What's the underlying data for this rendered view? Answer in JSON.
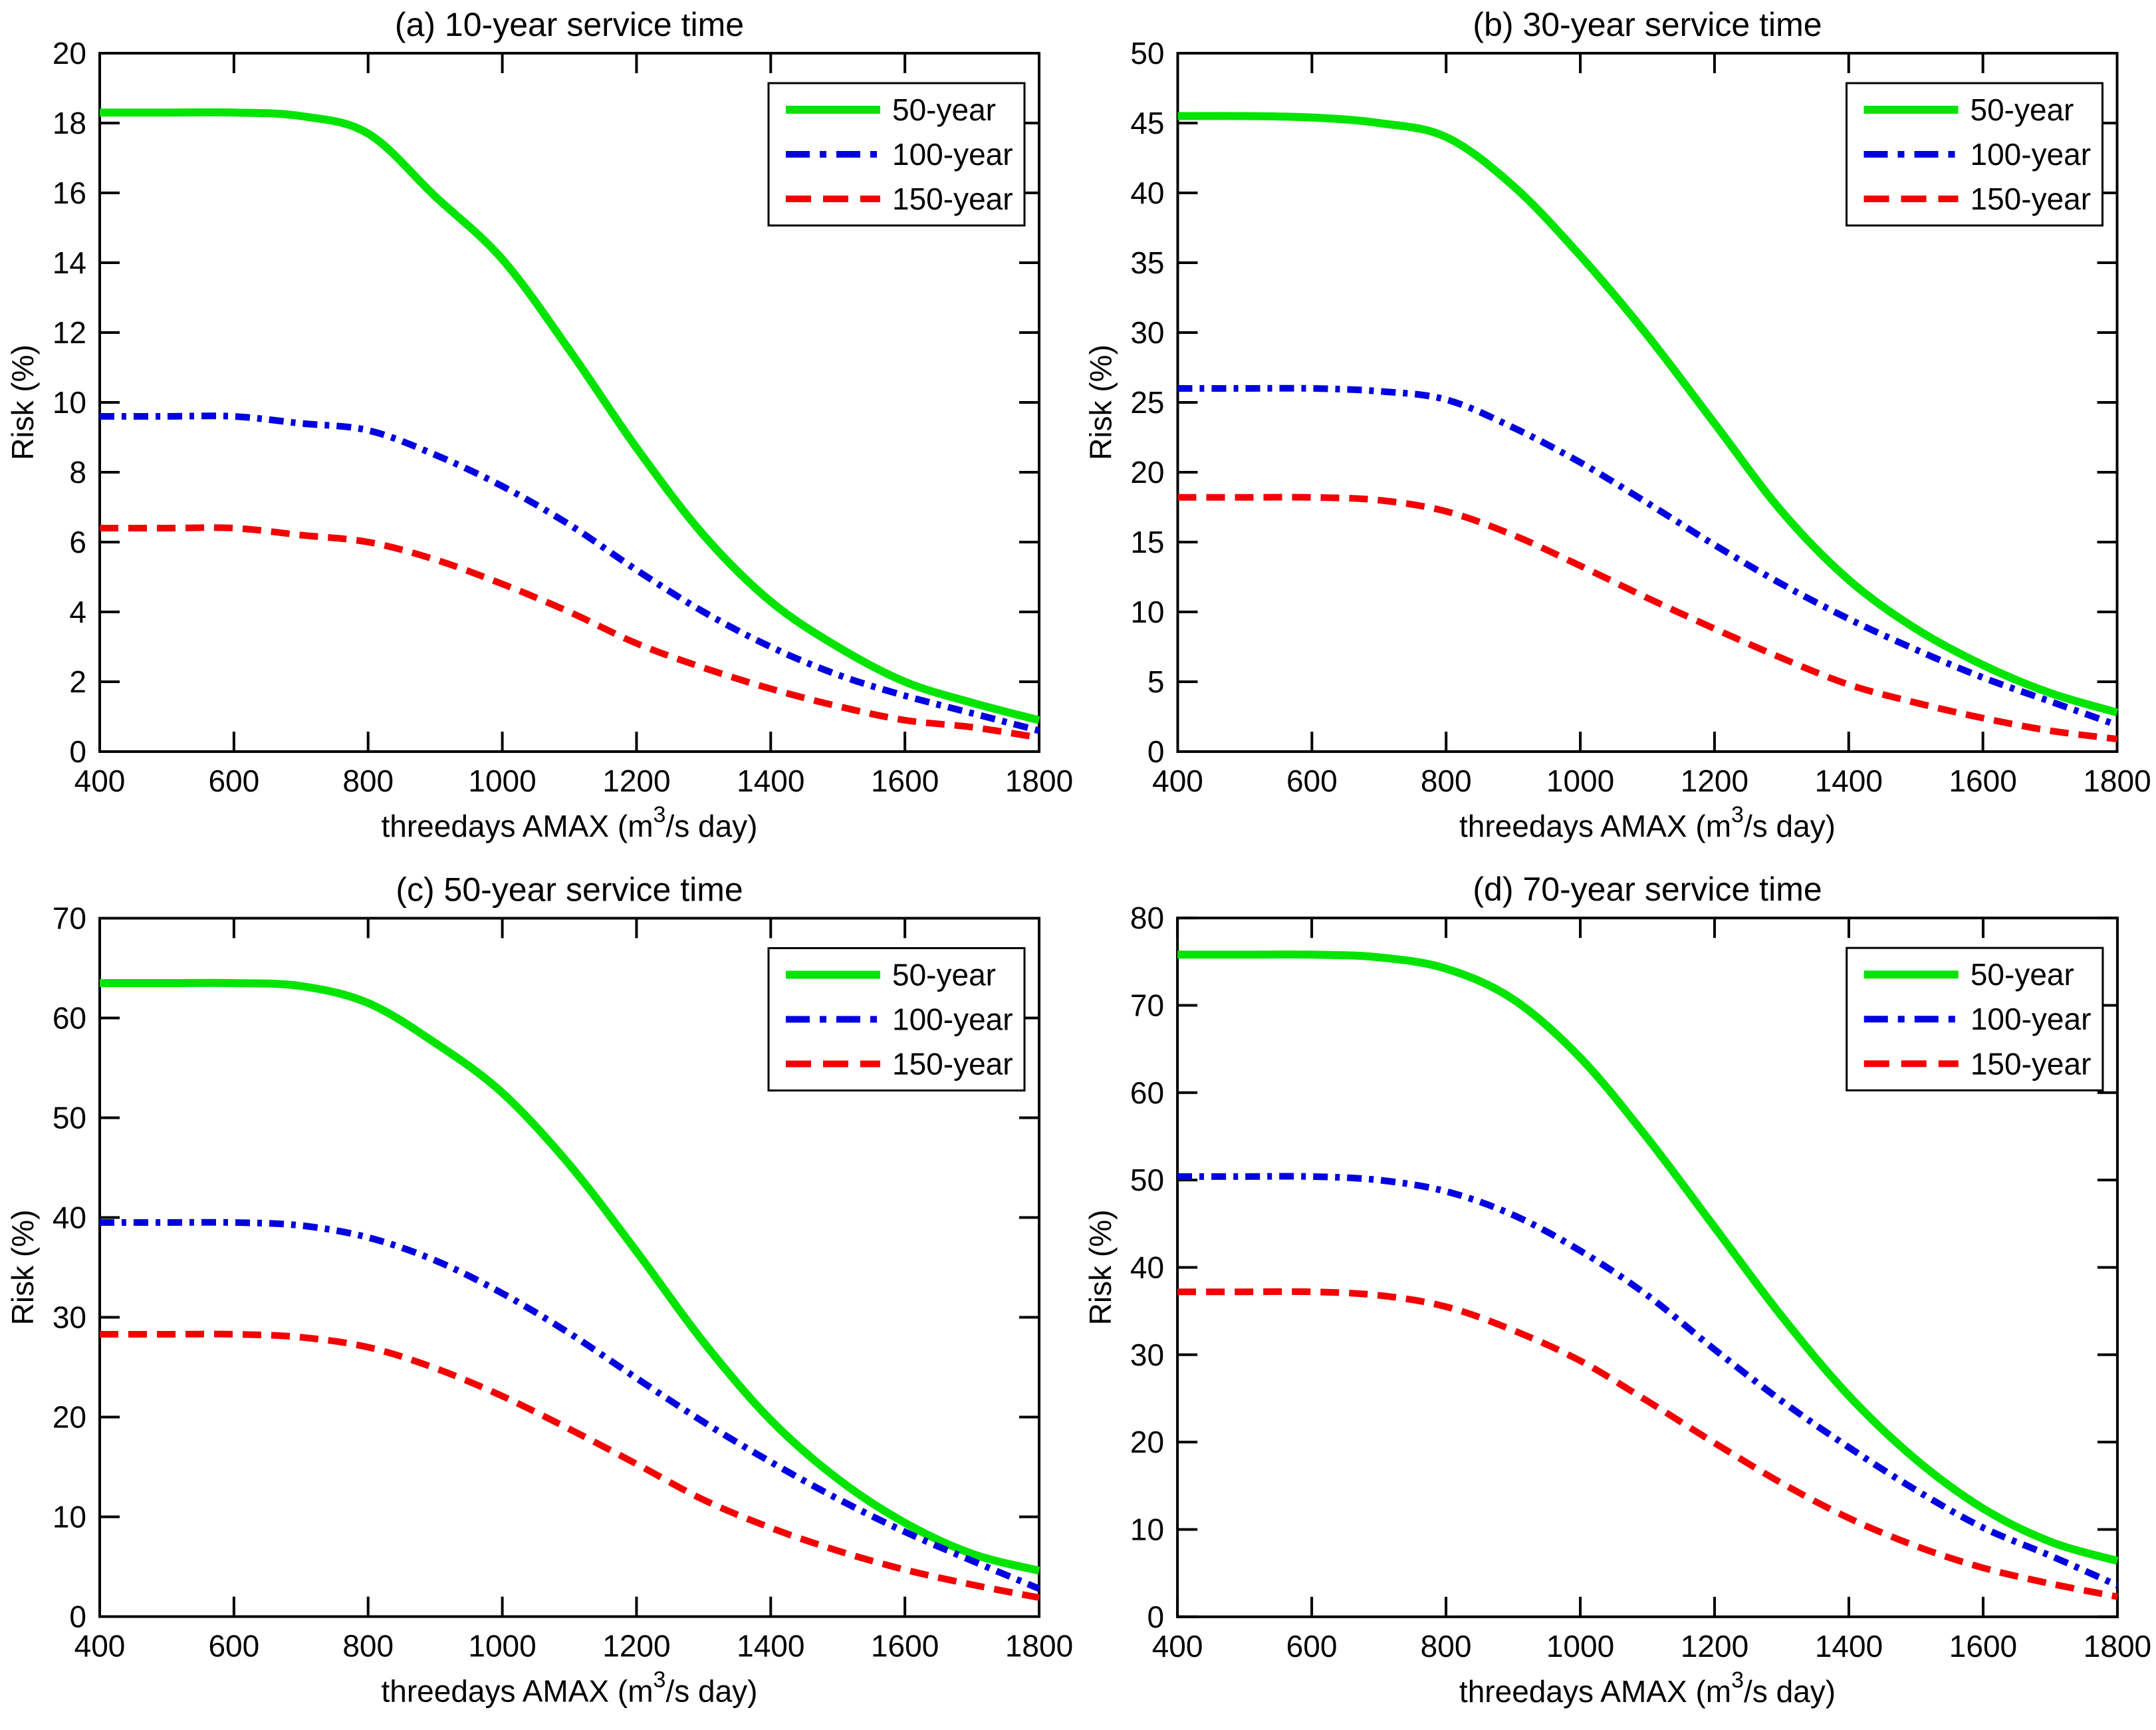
{
  "figure": {
    "background": "#ffffff",
    "axis_color": "#000000",
    "ylabel": "Risk (%)",
    "xlabel": {
      "prefix": "threedays AMAX (m",
      "sup": "3",
      "suffix": "/s day)"
    },
    "x_ticks": [
      400,
      600,
      800,
      1000,
      1200,
      1400,
      1600,
      1800
    ],
    "legend": {
      "position": "top-right",
      "items": [
        {
          "label": "50-year",
          "color": "#00e400",
          "style": "solid"
        },
        {
          "label": "100-year",
          "color": "#0000e0",
          "style": "dashdot"
        },
        {
          "label": "150-year",
          "color": "#f40000",
          "style": "dashed"
        }
      ]
    }
  },
  "chart_data": [
    {
      "type": "line",
      "key": "a",
      "title": "(a) 10-year service time",
      "xlabel": "threedays AMAX (m3/s day)",
      "ylabel": "Risk (%)",
      "xlim": [
        400,
        1800
      ],
      "ylim": [
        0,
        20
      ],
      "yticks": [
        0,
        2,
        4,
        6,
        8,
        10,
        12,
        14,
        16,
        18,
        20
      ],
      "x": [
        400,
        500,
        600,
        700,
        800,
        900,
        1000,
        1100,
        1200,
        1300,
        1400,
        1500,
        1600,
        1700,
        1800
      ],
      "series": [
        {
          "name": "50-year",
          "values": [
            18.3,
            18.3,
            18.3,
            18.2,
            17.7,
            15.9,
            14.1,
            11.5,
            8.7,
            6.2,
            4.3,
            3.0,
            2.0,
            1.4,
            0.9
          ]
        },
        {
          "name": "100-year",
          "values": [
            9.6,
            9.6,
            9.6,
            9.4,
            9.2,
            8.5,
            7.6,
            6.5,
            5.2,
            4.0,
            3.0,
            2.2,
            1.6,
            1.1,
            0.6
          ]
        },
        {
          "name": "150-year",
          "values": [
            6.4,
            6.4,
            6.4,
            6.2,
            6.0,
            5.5,
            4.8,
            4.0,
            3.1,
            2.4,
            1.8,
            1.3,
            0.9,
            0.7,
            0.4
          ]
        }
      ]
    },
    {
      "type": "line",
      "key": "b",
      "title": "(b) 30-year service time",
      "xlabel": "threedays AMAX (m3/s day)",
      "ylabel": "Risk (%)",
      "xlim": [
        400,
        1800
      ],
      "ylim": [
        0,
        50
      ],
      "yticks": [
        0,
        5,
        10,
        15,
        20,
        25,
        30,
        35,
        40,
        45,
        50
      ],
      "x": [
        400,
        500,
        600,
        700,
        800,
        900,
        1000,
        1100,
        1200,
        1300,
        1400,
        1500,
        1600,
        1700,
        1800
      ],
      "series": [
        {
          "name": "50-year",
          "values": [
            45.5,
            45.5,
            45.4,
            45.0,
            44.0,
            40.5,
            35.5,
            29.8,
            23.5,
            17.2,
            12.3,
            8.8,
            6.2,
            4.2,
            2.8
          ]
        },
        {
          "name": "100-year",
          "values": [
            26.0,
            26.0,
            26.0,
            25.8,
            25.2,
            23.2,
            20.7,
            17.8,
            14.8,
            12.0,
            9.5,
            7.3,
            5.3,
            3.6,
            1.9
          ]
        },
        {
          "name": "150-year",
          "values": [
            18.2,
            18.2,
            18.2,
            18.0,
            17.2,
            15.5,
            13.3,
            11.0,
            8.8,
            6.7,
            4.8,
            3.5,
            2.4,
            1.5,
            0.9
          ]
        }
      ]
    },
    {
      "type": "line",
      "key": "c",
      "title": "(c) 50-year service time",
      "xlabel": "threedays AMAX (m3/s day)",
      "ylabel": "Risk (%)",
      "xlim": [
        400,
        1800
      ],
      "ylim": [
        0,
        70
      ],
      "yticks": [
        0,
        10,
        20,
        30,
        40,
        50,
        60,
        70
      ],
      "x": [
        400,
        500,
        600,
        700,
        800,
        900,
        1000,
        1100,
        1200,
        1300,
        1400,
        1500,
        1600,
        1700,
        1800
      ],
      "series": [
        {
          "name": "50-year",
          "values": [
            63.5,
            63.5,
            63.5,
            63.2,
            61.5,
            57.5,
            52.5,
            45.3,
            36.6,
            27.5,
            19.7,
            13.8,
            9.4,
            6.3,
            4.6
          ]
        },
        {
          "name": "100-year",
          "values": [
            39.5,
            39.5,
            39.5,
            39.2,
            38.0,
            35.7,
            32.4,
            28.4,
            23.9,
            19.5,
            15.5,
            11.8,
            8.5,
            5.6,
            2.8
          ]
        },
        {
          "name": "150-year",
          "values": [
            28.3,
            28.3,
            28.3,
            28.0,
            27.0,
            24.9,
            22.1,
            18.8,
            15.3,
            11.7,
            8.9,
            6.6,
            4.7,
            3.2,
            1.9
          ]
        }
      ]
    },
    {
      "type": "line",
      "key": "d",
      "title": "(d) 70-year service time",
      "xlabel": "threedays AMAX (m3/s day)",
      "ylabel": "Risk (%)",
      "xlim": [
        400,
        1800
      ],
      "ylim": [
        0,
        80
      ],
      "yticks": [
        0,
        10,
        20,
        30,
        40,
        50,
        60,
        70,
        80
      ],
      "x": [
        400,
        500,
        600,
        700,
        800,
        900,
        1000,
        1100,
        1200,
        1300,
        1400,
        1500,
        1600,
        1700,
        1800
      ],
      "series": [
        {
          "name": "50-year",
          "values": [
            75.8,
            75.8,
            75.8,
            75.5,
            74.2,
            70.7,
            64.0,
            54.8,
            44.6,
            34.4,
            25.3,
            18.0,
            12.4,
            8.6,
            6.4
          ]
        },
        {
          "name": "100-year",
          "values": [
            50.4,
            50.4,
            50.4,
            50.0,
            48.7,
            46.0,
            41.9,
            36.8,
            30.6,
            24.7,
            19.4,
            14.5,
            10.2,
            7.0,
            3.6
          ]
        },
        {
          "name": "150-year",
          "values": [
            37.2,
            37.2,
            37.2,
            36.8,
            35.5,
            32.8,
            29.3,
            24.7,
            19.9,
            15.3,
            11.3,
            8.1,
            5.6,
            3.8,
            2.3
          ]
        }
      ]
    }
  ]
}
